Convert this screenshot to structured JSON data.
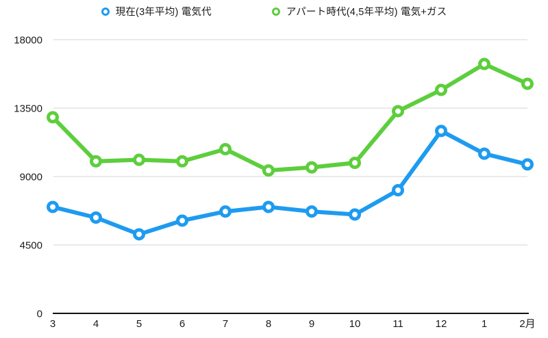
{
  "colors": {
    "current_series": "#1E9BF0",
    "apartment_series": "#5DCE3C",
    "grid": "#DEDEDE",
    "axis": "#111111",
    "text": "#1A1A1A"
  },
  "chart_data": {
    "type": "line",
    "categories": [
      "3",
      "4",
      "5",
      "6",
      "7",
      "8",
      "9",
      "10",
      "11",
      "12",
      "1",
      "2月"
    ],
    "series": [
      {
        "name": "現在(3年平均) 電気代",
        "color": "#1E9BF0",
        "values": [
          7000,
          6300,
          5200,
          6100,
          6700,
          7000,
          6700,
          6500,
          8100,
          12000,
          10500,
          9800
        ]
      },
      {
        "name": "アパート時代(4,5年平均) 電気+ガス",
        "color": "#5DCE3C",
        "values": [
          12900,
          10000,
          10100,
          10000,
          10800,
          9400,
          9600,
          9900,
          13300,
          14700,
          16400,
          15100
        ]
      }
    ],
    "ylim": [
      0,
      18000
    ],
    "yticks": [
      0,
      4500,
      9000,
      13500,
      18000
    ],
    "grid": true,
    "legend_position": "top",
    "marker": "open-circle"
  }
}
